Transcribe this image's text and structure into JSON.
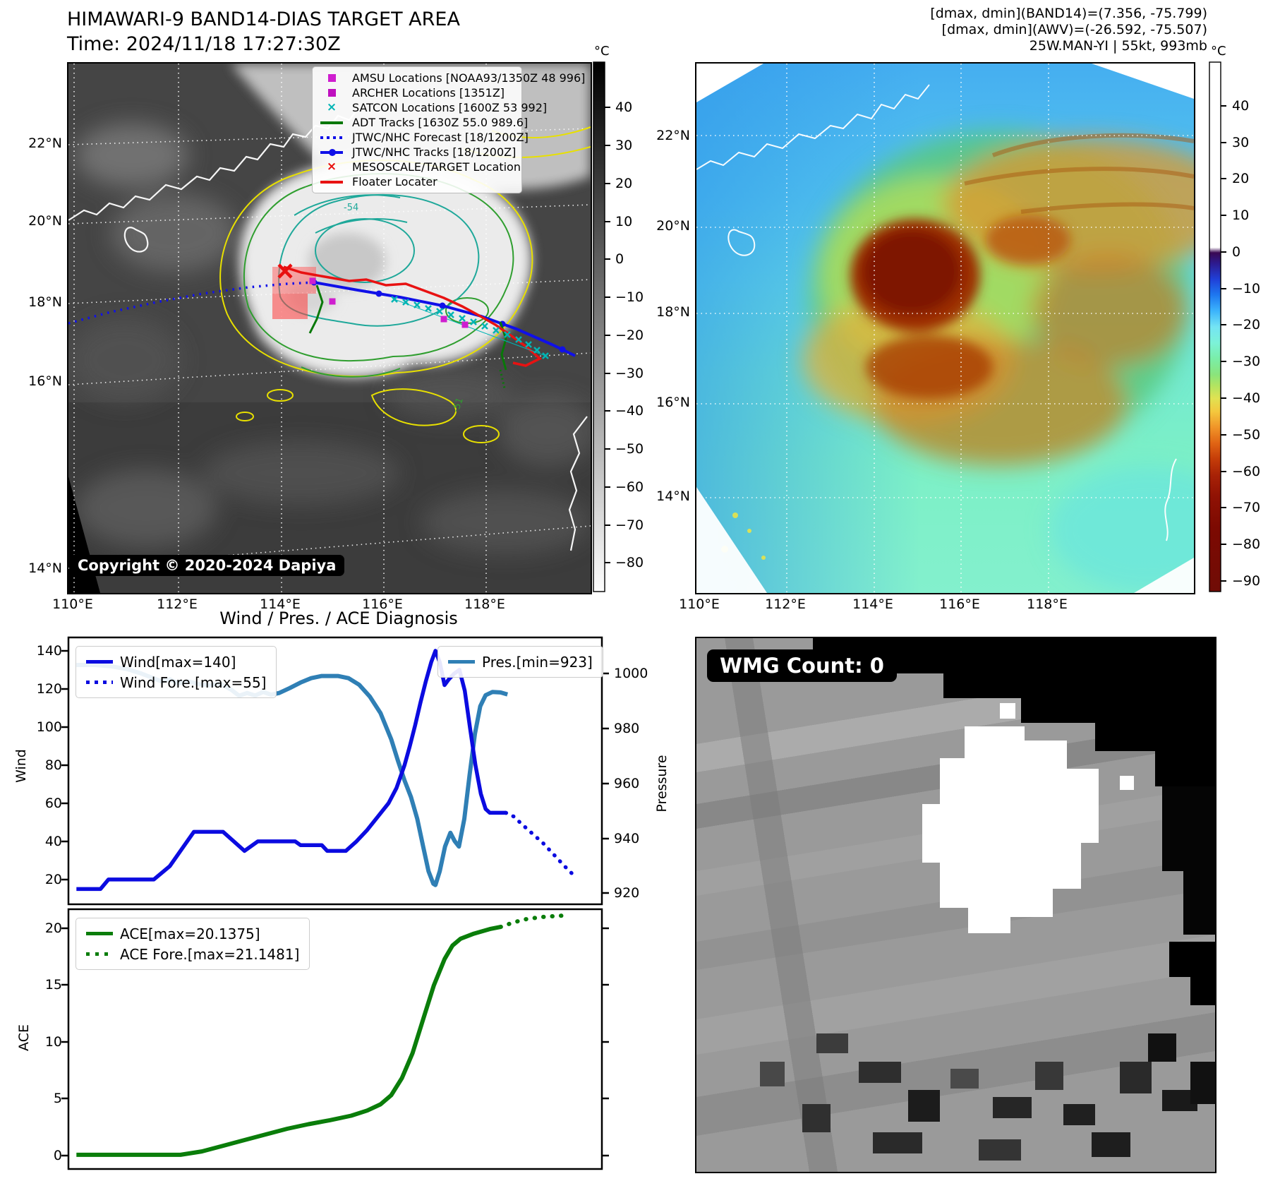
{
  "header": {
    "title_line1": "HIMAWARI-9 BAND14-DIAS TARGET AREA",
    "title_line2": "Time: 2024/11/18 17:27:30Z",
    "right_line1": "[dmax, dmin](BAND14)=(7.356, -75.799)",
    "right_line2": "[dmax, dmin](AWV)=(-26.592, -75.507)",
    "right_line3": "25W.MAN-YI | 55kt, 993mb"
  },
  "icons": {
    "x_marker": "×"
  },
  "band14_map": {
    "y_ticks": [
      "22°N",
      "20°N",
      "18°N",
      "16°N",
      "14°N"
    ],
    "x_ticks": [
      "110°E",
      "112°E",
      "114°E",
      "116°E",
      "118°E"
    ],
    "colorbar": {
      "unit": "°C",
      "ticks": [
        "40",
        "30",
        "20",
        "10",
        "0",
        "−10",
        "−20",
        "−30",
        "−40",
        "−50",
        "−60",
        "−70",
        "−80"
      ]
    },
    "legend": [
      {
        "label": "AMSU Locations [NOAA93/1350Z 48 996]",
        "marker": "square",
        "color": "#cf1ecf"
      },
      {
        "label": "ARCHER Locations [1351Z]",
        "marker": "square",
        "color": "#bf10bf"
      },
      {
        "label": "SATCON Locations [1600Z 53 992]",
        "marker": "x",
        "color": "#00b4b4"
      },
      {
        "label": "ADT Tracks [1630Z 55.0 989.6]",
        "marker": "line",
        "color": "#087808"
      },
      {
        "label": "JTWC/NHC Forecast [18/1200Z]",
        "marker": "dotted",
        "color": "#1010e8"
      },
      {
        "label": "JTWC/NHC Tracks [18/1200Z]",
        "marker": "line-dot",
        "color": "#1010e8"
      },
      {
        "label": "MESOSCALE/TARGET Location",
        "marker": "x",
        "color": "#e80e0e"
      },
      {
        "label": "Floater Locater",
        "marker": "line",
        "color": "#e81212"
      }
    ],
    "contour_labels": [
      "-54",
      "-51"
    ],
    "copyright": "Copyright © 2020-2024 Dapiya"
  },
  "awv_map": {
    "y_ticks": [
      "22°N",
      "20°N",
      "18°N",
      "16°N",
      "14°N"
    ],
    "x_ticks": [
      "110°E",
      "112°E",
      "114°E",
      "116°E",
      "118°E"
    ],
    "colorbar": {
      "unit": "°C",
      "ticks": [
        "40",
        "30",
        "20",
        "10",
        "0",
        "−10",
        "−20",
        "−30",
        "−40",
        "−50",
        "−60",
        "−70",
        "−80",
        "−90"
      ]
    }
  },
  "diagnosis_title": "Wind / Pres. / ACE Diagnosis",
  "wmg_label": "WMG Count: 0",
  "chart_data": [
    {
      "type": "line",
      "title": "Wind / Pres. / ACE Diagnosis",
      "x_axis": "time (no tick labels shown)",
      "left_axis": {
        "label": "Wind",
        "ticks": [
          140,
          120,
          100,
          80,
          60,
          40,
          20
        ],
        "range": [
          7,
          147
        ]
      },
      "right_axis": {
        "label": "Pressure",
        "ticks": [
          1000,
          980,
          960,
          940,
          920
        ],
        "range": [
          916,
          1013
        ]
      },
      "legend_position": [
        "upper left",
        "upper right"
      ],
      "series": [
        {
          "name": "Wind[max=140]",
          "color": "#0b0be0",
          "style": "solid",
          "axis": "left",
          "points": [
            [
              1.5,
              15
            ],
            [
              6,
              15
            ],
            [
              7.5,
              20
            ],
            [
              16,
              20
            ],
            [
              19,
              27
            ],
            [
              23.5,
              45
            ],
            [
              29,
              45
            ],
            [
              31,
              40
            ],
            [
              33,
              35
            ],
            [
              35.5,
              40
            ],
            [
              42.5,
              40
            ],
            [
              43.5,
              38
            ],
            [
              47.5,
              38
            ],
            [
              48.5,
              35
            ],
            [
              52,
              35
            ],
            [
              54,
              40
            ],
            [
              56,
              46
            ],
            [
              58,
              53
            ],
            [
              60,
              60
            ],
            [
              61.5,
              68
            ],
            [
              63,
              80
            ],
            [
              64,
              90
            ],
            [
              65,
              101
            ],
            [
              66,
              113
            ],
            [
              67,
              124
            ],
            [
              68,
              134
            ],
            [
              68.8,
              140
            ],
            [
              69.6,
              134
            ],
            [
              70.5,
              122
            ],
            [
              71.3,
              125
            ],
            [
              72.3,
              128
            ],
            [
              73.3,
              130
            ],
            [
              74.3,
              119
            ],
            [
              75.3,
              99
            ],
            [
              76.3,
              80
            ],
            [
              77.3,
              65
            ],
            [
              78.2,
              57
            ],
            [
              79,
              55
            ],
            [
              82,
              55
            ]
          ]
        },
        {
          "name": "Wind Fore.[max=55]",
          "color": "#0b0be0",
          "style": "dotted",
          "axis": "left",
          "points": [
            [
              82,
              55
            ],
            [
              83.5,
              53
            ],
            [
              85,
              49
            ],
            [
              87,
              44
            ],
            [
              89,
              39
            ],
            [
              91,
              33
            ],
            [
              93,
              27
            ],
            [
              94.8,
              22
            ]
          ]
        },
        {
          "name": "Pres.[min=923]",
          "color": "#2f7fb5",
          "style": "solid",
          "axis": "right",
          "points": [
            [
              1.5,
              1003
            ],
            [
              5,
              1003
            ],
            [
              8,
              1002.5
            ],
            [
              11,
              1001.5
            ],
            [
              13.5,
              1000
            ],
            [
              15.5,
              998.5
            ],
            [
              17.5,
              997
            ],
            [
              19,
              997.8
            ],
            [
              20.5,
              996.3
            ],
            [
              22.5,
              997
            ],
            [
              24.5,
              996
            ],
            [
              26.5,
              995.6
            ],
            [
              28.5,
              996.2
            ],
            [
              30.5,
              994
            ],
            [
              32,
              991.8
            ],
            [
              33.5,
              992.8
            ],
            [
              35,
              991.9
            ],
            [
              36.5,
              993.2
            ],
            [
              38,
              992.2
            ],
            [
              39.5,
              992.8
            ],
            [
              41.5,
              994.6
            ],
            [
              43.5,
              996.6
            ],
            [
              45.5,
              998.2
            ],
            [
              47.5,
              999
            ],
            [
              50.5,
              999
            ],
            [
              52.5,
              998.2
            ],
            [
              54.5,
              995.8
            ],
            [
              56.5,
              991.5
            ],
            [
              58.5,
              985.5
            ],
            [
              60.5,
              976
            ],
            [
              61.8,
              968
            ],
            [
              63,
              961
            ],
            [
              64.2,
              955
            ],
            [
              65.4,
              947
            ],
            [
              66.5,
              937
            ],
            [
              67.5,
              928
            ],
            [
              68.4,
              923.5
            ],
            [
              68.8,
              923
            ],
            [
              69.6,
              928
            ],
            [
              70.6,
              937
            ],
            [
              71.6,
              942
            ],
            [
              72.4,
              939
            ],
            [
              73.2,
              937
            ],
            [
              74.2,
              947
            ],
            [
              75.2,
              963
            ],
            [
              76.2,
              978
            ],
            [
              77.2,
              988
            ],
            [
              78.2,
              992
            ],
            [
              79.5,
              993.2
            ],
            [
              81,
              993
            ],
            [
              82.3,
              992.3
            ]
          ]
        }
      ]
    },
    {
      "type": "line",
      "x_axis": "time (no tick labels shown)",
      "left_axis": {
        "label": "ACE",
        "ticks": [
          20,
          15,
          10,
          5,
          0
        ],
        "range": [
          -1.2,
          21.7
        ]
      },
      "legend_position": [
        "upper left"
      ],
      "series": [
        {
          "name": "ACE[max=20.1375]",
          "color": "#0a7d0a",
          "style": "solid",
          "points": [
            [
              1.5,
              0.05
            ],
            [
              21,
              0.05
            ],
            [
              25,
              0.35
            ],
            [
              29,
              0.85
            ],
            [
              33,
              1.35
            ],
            [
              37,
              1.85
            ],
            [
              41,
              2.35
            ],
            [
              45,
              2.75
            ],
            [
              49,
              3.1
            ],
            [
              53,
              3.5
            ],
            [
              56,
              3.95
            ],
            [
              58.5,
              4.5
            ],
            [
              60.5,
              5.3
            ],
            [
              62.5,
              6.8
            ],
            [
              64.5,
              9
            ],
            [
              66.5,
              12
            ],
            [
              68.5,
              15
            ],
            [
              70.5,
              17.3
            ],
            [
              72,
              18.5
            ],
            [
              73.5,
              19.1
            ],
            [
              76,
              19.55
            ],
            [
              79,
              19.95
            ],
            [
              81,
              20.14
            ]
          ]
        },
        {
          "name": "ACE Fore.[max=21.1481]",
          "color": "#0a7d0a",
          "style": "dotted",
          "points": [
            [
              81,
              20.14
            ],
            [
              83.5,
              20.55
            ],
            [
              86,
              20.85
            ],
            [
              89,
              21.02
            ],
            [
              92,
              21.12
            ],
            [
              93.5,
              21.15
            ]
          ]
        }
      ]
    }
  ]
}
